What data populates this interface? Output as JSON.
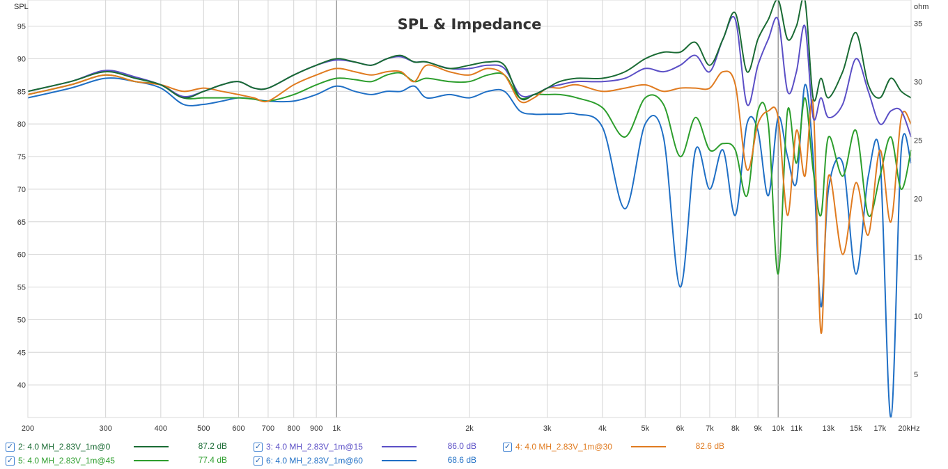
{
  "chart_data": {
    "type": "line",
    "title": "SPL & Impedance",
    "ylabel": "SPL",
    "y2label": "ohm",
    "xscale": "log",
    "xlim": [
      200,
      20000
    ],
    "ylim": [
      35,
      99
    ],
    "y2lim": [
      1.3,
      37
    ],
    "grid": true,
    "x_ticks": [
      "200",
      "300",
      "400",
      "500",
      "600",
      "700",
      "800",
      "900",
      "1k",
      "2k",
      "3k",
      "4k",
      "5k",
      "6k",
      "7k",
      "8k",
      "9k",
      "10k",
      "11k",
      "13k",
      "15k",
      "17k",
      "20kHz"
    ],
    "y_ticks": [
      "95",
      "90",
      "85",
      "80",
      "75",
      "70",
      "65",
      "60",
      "55",
      "50",
      "45",
      "40"
    ],
    "y2_ticks": [
      "35",
      "30",
      "25",
      "20",
      "15",
      "10",
      "5"
    ],
    "series": [
      {
        "name": "2: 4.0 MH_2.83V_1m@0",
        "color": "#1a6b34",
        "level": "87.2 dB",
        "x": [
          200,
          250,
          300,
          350,
          400,
          450,
          500,
          550,
          600,
          650,
          700,
          800,
          900,
          1000,
          1100,
          1200,
          1300,
          1400,
          1500,
          1600,
          1800,
          2000,
          2200,
          2400,
          2600,
          2800,
          3000,
          3200,
          3500,
          4000,
          4500,
          5000,
          5500,
          6000,
          6500,
          7000,
          7500,
          8000,
          8500,
          9000,
          9500,
          10000,
          10500,
          11000,
          11500,
          12000,
          12500,
          13000,
          14000,
          15000,
          16000,
          17000,
          18000,
          19000,
          20000
        ],
        "y": [
          85,
          86.5,
          88,
          87,
          86,
          84,
          85,
          86,
          86.5,
          85.5,
          85.5,
          87.5,
          89,
          90,
          89.5,
          89,
          90,
          90.5,
          89.5,
          89.5,
          88.5,
          89,
          89.5,
          89,
          84,
          84.5,
          85.5,
          86.5,
          87,
          87,
          88,
          90,
          91,
          91,
          92.5,
          89,
          93,
          97,
          88,
          93,
          96,
          99,
          93,
          95,
          99,
          84,
          87,
          84,
          88,
          94,
          86,
          84,
          87,
          85,
          84
        ]
      },
      {
        "name": "3: 4.0 MH_2.83V_1m@15",
        "color": "#5b4fc6",
        "level": "86.0 dB",
        "x": [
          200,
          250,
          300,
          350,
          400,
          450,
          500,
          550,
          600,
          650,
          700,
          800,
          900,
          1000,
          1100,
          1200,
          1300,
          1400,
          1500,
          1600,
          1800,
          2000,
          2200,
          2400,
          2600,
          2800,
          3000,
          3200,
          3500,
          4000,
          4500,
          5000,
          5500,
          6000,
          6500,
          7000,
          7500,
          8000,
          8500,
          9000,
          9500,
          10000,
          10500,
          11000,
          11500,
          12000,
          12500,
          13000,
          14000,
          15000,
          16000,
          17000,
          18000,
          19000,
          20000
        ],
        "y": [
          85,
          86.5,
          88.2,
          87.2,
          86,
          84.2,
          85,
          86,
          86.5,
          85.5,
          85.5,
          87.5,
          89,
          89.8,
          89.5,
          89,
          90,
          90.3,
          89.5,
          89.5,
          88.5,
          88.5,
          89,
          88.5,
          84.5,
          84.5,
          85.5,
          86,
          86.5,
          86.5,
          87,
          88.5,
          88,
          89,
          90.5,
          88,
          93,
          96,
          83,
          89,
          93,
          96,
          85,
          88,
          95,
          81,
          84,
          81,
          83,
          90,
          85,
          80,
          82,
          82,
          78
        ]
      },
      {
        "name": "4: 4.0 MH_2.83V_1m@30",
        "color": "#e07b20",
        "level": "82.6 dB",
        "x": [
          200,
          250,
          300,
          350,
          400,
          450,
          500,
          550,
          600,
          650,
          700,
          800,
          900,
          1000,
          1100,
          1200,
          1300,
          1400,
          1500,
          1600,
          1800,
          2000,
          2200,
          2400,
          2600,
          2800,
          3000,
          3200,
          3500,
          4000,
          4500,
          5000,
          5500,
          6000,
          6500,
          7000,
          7500,
          8000,
          8500,
          9000,
          9500,
          10000,
          10500,
          11000,
          11500,
          12000,
          12500,
          13000,
          14000,
          15000,
          16000,
          17000,
          18000,
          19000,
          20000
        ],
        "y": [
          84.5,
          86,
          87.5,
          86.5,
          86,
          85,
          85.5,
          85,
          84.5,
          84,
          83.5,
          86,
          87.5,
          88.5,
          88,
          87.5,
          88,
          88,
          86.5,
          89,
          88,
          87.5,
          88.5,
          87.5,
          83.5,
          84,
          85.5,
          85.5,
          86,
          85,
          85.5,
          86,
          85,
          85.5,
          85.5,
          85.5,
          88,
          86,
          73,
          80,
          82,
          81,
          66,
          79,
          72,
          83,
          48,
          72,
          60,
          71,
          63,
          76,
          65,
          81,
          80
        ]
      },
      {
        "name": "5: 4.0 MH_2.83V_1m@45",
        "color": "#2d9e2d",
        "level": "77.4 dB",
        "x": [
          200,
          250,
          300,
          350,
          400,
          450,
          500,
          550,
          600,
          650,
          700,
          800,
          900,
          1000,
          1100,
          1200,
          1300,
          1400,
          1500,
          1600,
          1800,
          2000,
          2200,
          2400,
          2600,
          2800,
          3000,
          3200,
          3500,
          4000,
          4500,
          5000,
          5500,
          6000,
          6500,
          7000,
          7500,
          8000,
          8500,
          9000,
          9500,
          10000,
          10500,
          11000,
          11500,
          12000,
          12500,
          13000,
          14000,
          15000,
          16000,
          17000,
          18000,
          19000,
          20000
        ],
        "y": [
          84.5,
          86,
          87.5,
          86.5,
          86,
          84,
          84,
          84,
          84,
          83.8,
          83.5,
          84.5,
          86,
          87,
          86.8,
          86.5,
          87.5,
          87.8,
          86.5,
          87,
          86.5,
          86.5,
          87.5,
          87.5,
          84,
          84.5,
          84.5,
          84.5,
          84,
          82.5,
          78,
          84,
          83,
          75,
          81,
          76,
          77,
          76,
          69,
          82,
          80,
          57,
          82,
          74,
          84,
          73,
          66,
          78,
          72,
          79,
          66,
          72,
          78,
          70,
          76
        ]
      },
      {
        "name": "6: 4.0 MH_2.83V_1m@60",
        "color": "#1f6fc5",
        "level": "68.6 dB",
        "x": [
          200,
          250,
          300,
          350,
          400,
          450,
          500,
          550,
          600,
          650,
          700,
          800,
          900,
          1000,
          1100,
          1200,
          1300,
          1400,
          1500,
          1600,
          1800,
          2000,
          2200,
          2400,
          2600,
          2800,
          3000,
          3200,
          3500,
          4000,
          4500,
          5000,
          5500,
          6000,
          6500,
          7000,
          7500,
          8000,
          8500,
          9000,
          9500,
          10000,
          10500,
          11000,
          11500,
          12000,
          12500,
          13000,
          14000,
          15000,
          16000,
          17000,
          18000,
          19000,
          20000
        ],
        "y": [
          84,
          85.5,
          87,
          86.5,
          85.5,
          83,
          83,
          83.5,
          84,
          83.8,
          83.5,
          83.5,
          84.5,
          85.8,
          85,
          84.5,
          85,
          85,
          85.8,
          84,
          84.5,
          84,
          85,
          85,
          82,
          81.5,
          81.5,
          81.5,
          81.5,
          79.5,
          67,
          80,
          78,
          55,
          76,
          70,
          76,
          66,
          80,
          79,
          69,
          81,
          75,
          71,
          86,
          75,
          52,
          70,
          74,
          57,
          72,
          75,
          35,
          76,
          74
        ]
      }
    ]
  },
  "legend": [
    {
      "label": "2: 4.0 MH_2.83V_1m@0",
      "value": "87.2 dB",
      "checked": "✓"
    },
    {
      "label": "3: 4.0 MH_2.83V_1m@15",
      "value": "86.0 dB",
      "checked": "✓"
    },
    {
      "label": "4: 4.0 MH_2.83V_1m@30",
      "value": "82.6 dB",
      "checked": "✓"
    },
    {
      "label": "5: 4.0 MH_2.83V_1m@45",
      "value": "77.4 dB",
      "checked": "✓"
    },
    {
      "label": "6: 4.0 MH_2.83V_1m@60",
      "value": "68.6 dB",
      "checked": "✓"
    }
  ]
}
